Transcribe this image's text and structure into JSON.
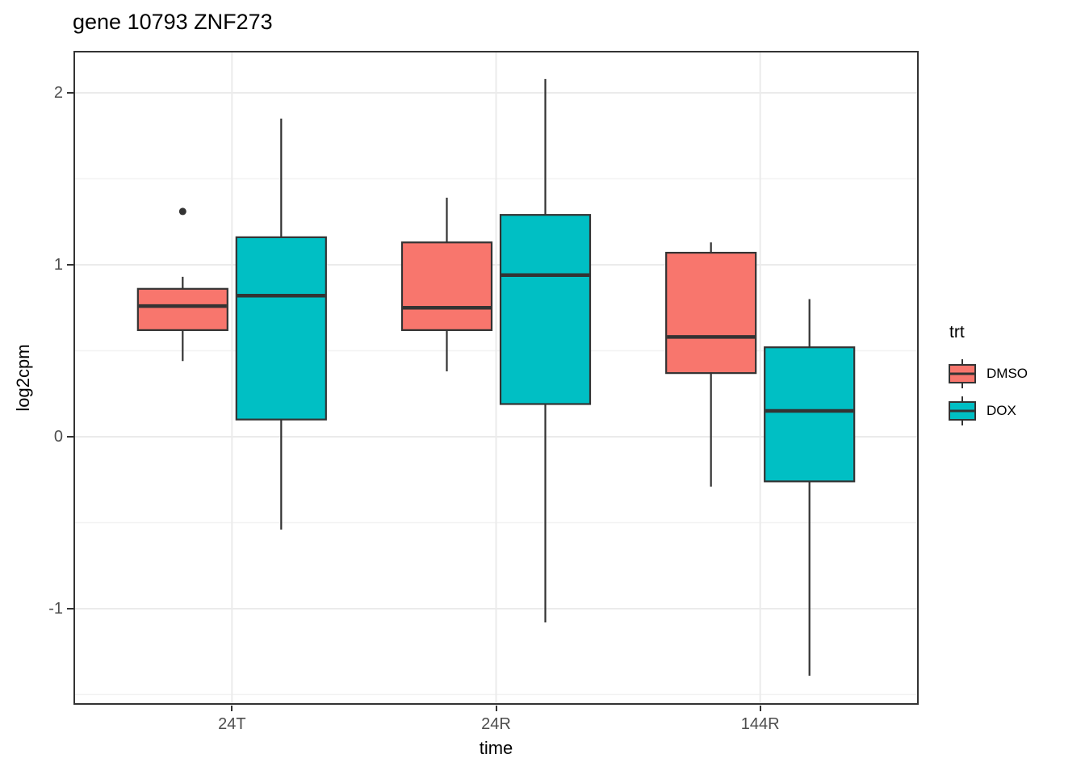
{
  "title": "gene 10793 ZNF273",
  "x_axis": {
    "label": "time",
    "ticks": [
      "24T",
      "24R",
      "144R"
    ]
  },
  "y_axis": {
    "label": "log2cpm",
    "ticks": [
      "2",
      "1",
      "0",
      "-1"
    ]
  },
  "legend": {
    "title": "trt",
    "entries": [
      {
        "label": "DMSO",
        "color": "#F8766D"
      },
      {
        "label": "DOX",
        "color": "#00BFC4"
      }
    ]
  },
  "style": {
    "box_stroke": "#333333",
    "median_stroke": "#333333",
    "whisker_stroke": "#333333",
    "outlier_color": "#333333",
    "panel_border": "#333333",
    "grid_major": "#EBEBEB",
    "grid_minor": "#F2F2F2",
    "tick_color": "#333333",
    "tick_label_color": "#4D4D4D"
  },
  "chart_data": {
    "type": "boxplot",
    "title": "gene 10793 ZNF273",
    "xlabel": "time",
    "ylabel": "log2cpm",
    "categories": [
      "24T",
      "24R",
      "144R"
    ],
    "ylim": [
      -1.559,
      2.244
    ],
    "y_major_ticks": [
      2,
      1,
      0,
      -1
    ],
    "y_minor_ticks": [
      1.5,
      0.5,
      -0.5,
      -1.5
    ],
    "grid": true,
    "legend_title": "trt",
    "legend_position": "right",
    "series": [
      {
        "name": "DMSO",
        "color": "#F8766D",
        "boxes": [
          {
            "category": "24T",
            "low": 0.44,
            "q1": 0.62,
            "median": 0.76,
            "q3": 0.86,
            "high": 0.93,
            "outliers": [
              1.31
            ]
          },
          {
            "category": "24R",
            "low": 0.38,
            "q1": 0.62,
            "median": 0.75,
            "q3": 1.13,
            "high": 1.39,
            "outliers": []
          },
          {
            "category": "144R",
            "low": -0.29,
            "q1": 0.37,
            "median": 0.58,
            "q3": 1.07,
            "high": 1.13,
            "outliers": []
          }
        ]
      },
      {
        "name": "DOX",
        "color": "#00BFC4",
        "boxes": [
          {
            "category": "24T",
            "low": -0.54,
            "q1": 0.1,
            "median": 0.82,
            "q3": 1.16,
            "high": 1.85,
            "outliers": []
          },
          {
            "category": "24R",
            "low": -1.08,
            "q1": 0.19,
            "median": 0.94,
            "q3": 1.29,
            "high": 2.08,
            "outliers": []
          },
          {
            "category": "144R",
            "low": -1.39,
            "q1": -0.26,
            "median": 0.15,
            "q3": 0.52,
            "high": 0.8,
            "outliers": []
          }
        ]
      }
    ]
  }
}
